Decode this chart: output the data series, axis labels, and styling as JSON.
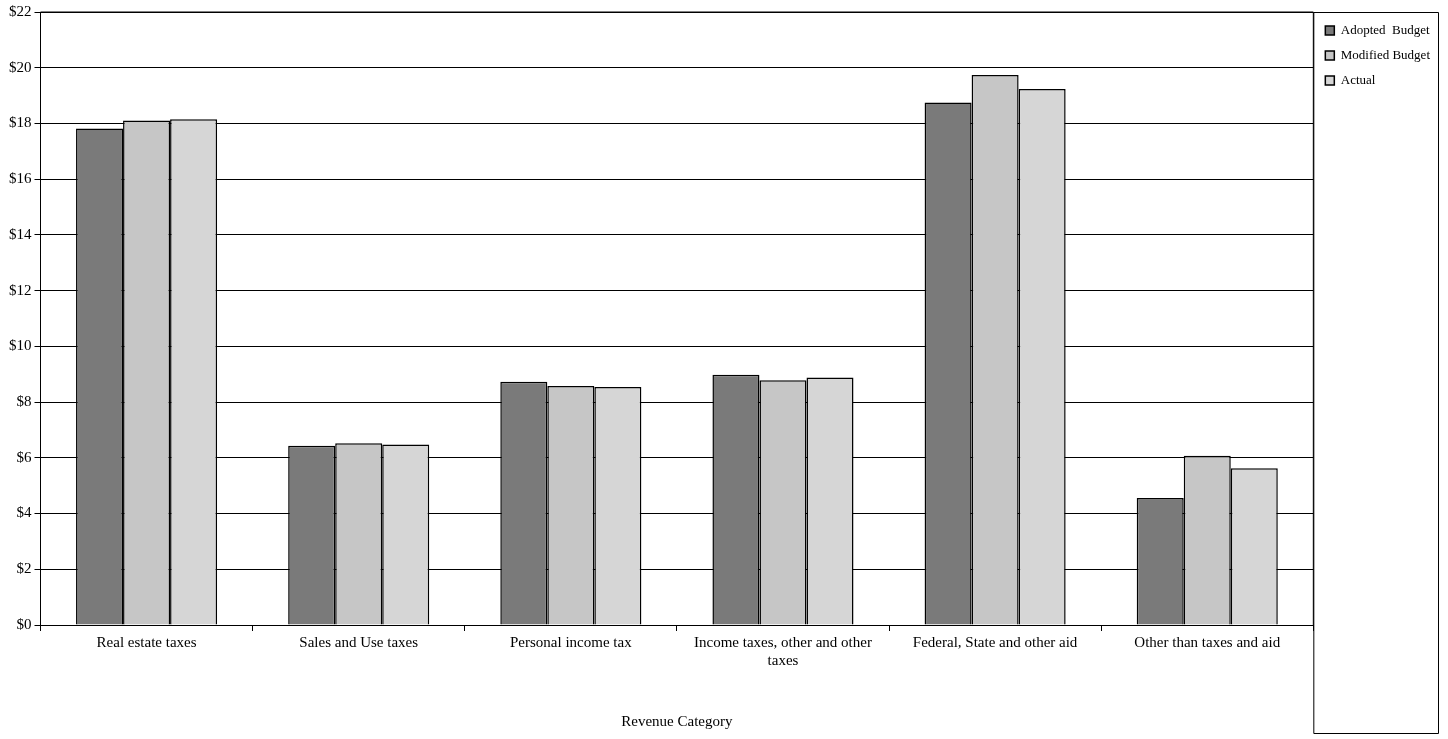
{
  "chart_data": {
    "type": "bar",
    "xlabel": "Revenue Category",
    "categories": [
      "Real estate taxes",
      "Sales and Use taxes",
      "Personal income tax",
      "Income taxes, other and other taxes",
      "Federal, State and other aid",
      "Other than taxes and aid"
    ],
    "series": [
      {
        "name": "Adopted  Budget",
        "color": "#7a7a7a",
        "values": [
          17.82,
          6.43,
          8.73,
          8.98,
          18.75,
          4.56
        ]
      },
      {
        "name": "Modified Budget",
        "color": "#c6c6c6",
        "values": [
          18.11,
          6.52,
          8.58,
          8.78,
          19.74,
          6.07
        ]
      },
      {
        "name": "Actual",
        "color": "#d6d6d6",
        "values": [
          18.15,
          6.48,
          8.54,
          8.88,
          19.24,
          5.63
        ]
      }
    ],
    "ylim": [
      0,
      22
    ],
    "yticks": [
      {
        "value": 0,
        "label": "$0"
      },
      {
        "value": 2,
        "label": "$2"
      },
      {
        "value": 4,
        "label": "$4"
      },
      {
        "value": 6,
        "label": "$6"
      },
      {
        "value": 8,
        "label": "$8"
      },
      {
        "value": 10,
        "label": "$10"
      },
      {
        "value": 12,
        "label": "$12"
      },
      {
        "value": 14,
        "label": "$14"
      },
      {
        "value": 16,
        "label": "$16"
      },
      {
        "value": 18,
        "label": "$18"
      },
      {
        "value": 20,
        "label": "$20"
      },
      {
        "value": 22,
        "label": "$22"
      }
    ],
    "grid": "y",
    "legend": "top right"
  }
}
